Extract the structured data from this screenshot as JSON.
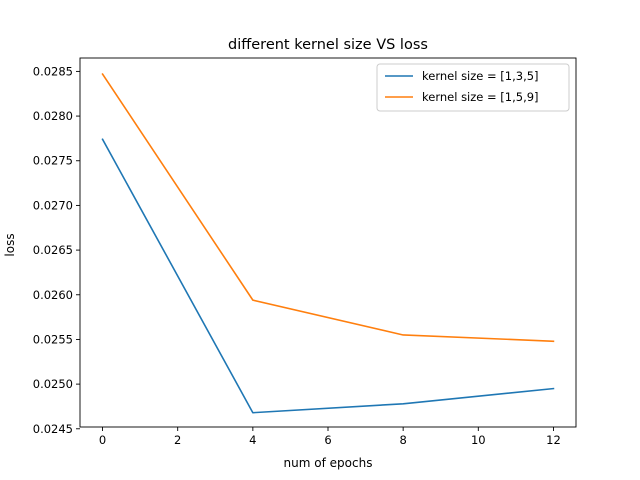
{
  "chart_data": {
    "type": "line",
    "title": "different kernel size VS loss",
    "xlabel": "num of epochs",
    "ylabel": "loss",
    "xlim": [
      -0.6,
      12.6
    ],
    "ylim": [
      0.02452,
      0.02865
    ],
    "xticks": [
      0,
      2,
      4,
      6,
      8,
      10,
      12
    ],
    "xtick_labels": [
      "0",
      "2",
      "4",
      "6",
      "8",
      "10",
      "12"
    ],
    "yticks": [
      0.0245,
      0.025,
      0.0255,
      0.026,
      0.0265,
      0.027,
      0.0275,
      0.028,
      0.0285
    ],
    "ytick_labels": [
      "0.0245",
      "0.0250",
      "0.0255",
      "0.0260",
      "0.0265",
      "0.0270",
      "0.0275",
      "0.0280",
      "0.0285"
    ],
    "grid": false,
    "legend_position": "top-right",
    "x": [
      0,
      4,
      8,
      12
    ],
    "series": [
      {
        "name": "kernel size = [1,3,5]",
        "color": "#1f77b4",
        "values": [
          0.02774,
          0.02468,
          0.02478,
          0.02495
        ]
      },
      {
        "name": "kernel size = [1,5,9]",
        "color": "#ff7f0e",
        "values": [
          0.02847,
          0.02594,
          0.02555,
          0.02548
        ]
      }
    ]
  }
}
